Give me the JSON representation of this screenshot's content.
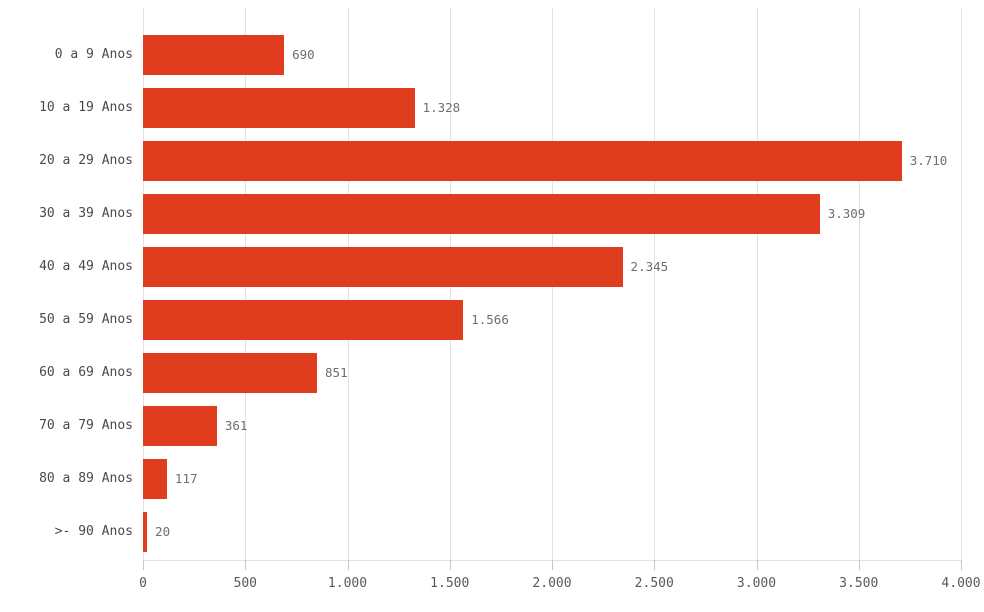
{
  "chart_data": {
    "type": "bar",
    "orientation": "horizontal",
    "title": "",
    "xlabel": "",
    "ylabel": "",
    "categories": [
      "0 a 9 Anos",
      "10 a 19 Anos",
      "20 a 29 Anos",
      "30 a 39 Anos",
      "40 a 49 Anos",
      "50 a 59 Anos",
      "60 a 69 Anos",
      "70 a 79 Anos",
      "80 a 89 Anos",
      ">- 90 Anos"
    ],
    "values": [
      690,
      1328,
      3710,
      3309,
      2345,
      1566,
      851,
      361,
      117,
      20
    ],
    "value_labels": [
      "690",
      "1.328",
      "3.710",
      "3.309",
      "2.345",
      "1.566",
      "851",
      "361",
      "117",
      "20"
    ],
    "xlim": [
      0,
      4000
    ],
    "x_tick_values": [
      0,
      500,
      1000,
      1500,
      2000,
      2500,
      3000,
      3500,
      4000
    ],
    "x_tick_labels": [
      "0",
      "500",
      "1.000",
      "1.500",
      "2.000",
      "2.500",
      "3.000",
      "3.500",
      "4.000"
    ],
    "grid": true,
    "legend": "none"
  },
  "colors": {
    "bar": "#e03c1e",
    "grid": "#e2e2e2",
    "tick": "#c6c6c6",
    "axis_label": "#595959",
    "category_label": "#4a4a4a",
    "value_label": "#6e6e6e",
    "background": "#ffffff"
  }
}
